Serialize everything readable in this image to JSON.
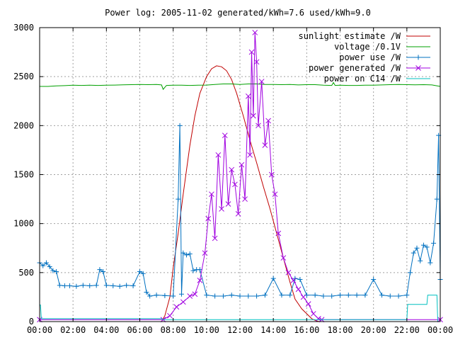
{
  "chart_data": {
    "type": "line",
    "title": "Power log: 2005-11-02 generated/kWh=7.6 used/kWh=9.0",
    "xlabel": "",
    "ylabel": "",
    "xlim": [
      0,
      24
    ],
    "ylim": [
      0,
      3000
    ],
    "x_ticks": [
      "00:00",
      "02:00",
      "04:00",
      "06:00",
      "08:00",
      "10:00",
      "12:00",
      "14:00",
      "16:00",
      "18:00",
      "20:00",
      "22:00",
      "00:00"
    ],
    "y_ticks": [
      "0",
      "500",
      "1000",
      "1500",
      "2000",
      "2500",
      "3000"
    ],
    "grid": true,
    "legend_position": "top-right",
    "series": [
      {
        "name": "sunlight estimate /W",
        "color": "#c00000",
        "marker": "none",
        "x": [
          0,
          7.3,
          7.5,
          7.8,
          8.0,
          8.3,
          8.6,
          9.0,
          9.3,
          9.6,
          10.0,
          10.3,
          10.6,
          10.9,
          11.2,
          11.5,
          11.8,
          12.2,
          12.6,
          13.0,
          13.4,
          13.8,
          14.2,
          14.6,
          15.0,
          15.3,
          15.7,
          16.0,
          16.3,
          16.6,
          16.8,
          24
        ],
        "values": [
          0,
          0,
          60,
          250,
          550,
          900,
          1300,
          1800,
          2100,
          2330,
          2500,
          2580,
          2610,
          2600,
          2560,
          2470,
          2330,
          2100,
          1850,
          1620,
          1380,
          1150,
          900,
          650,
          400,
          230,
          130,
          80,
          30,
          5,
          0,
          0
        ]
      },
      {
        "name": "voltage /0.1V",
        "color": "#00a000",
        "marker": "none",
        "x": [
          0,
          0.5,
          1,
          1.5,
          2,
          2.5,
          3,
          3.5,
          4,
          4.5,
          5,
          5.5,
          6,
          6.5,
          7.0,
          7.3,
          7.4,
          7.6,
          8,
          8.5,
          9,
          9.5,
          10,
          10.5,
          11,
          11.5,
          12,
          12.5,
          13,
          13.5,
          14,
          14.5,
          15,
          15.5,
          16,
          16.5,
          17,
          17.5,
          17.6,
          17.7,
          18,
          18.5,
          19,
          19.5,
          20,
          20.5,
          21,
          21.5,
          22,
          22.5,
          23,
          23.5,
          24
        ],
        "values": [
          2400,
          2400,
          2405,
          2408,
          2412,
          2410,
          2412,
          2410,
          2412,
          2414,
          2416,
          2418,
          2420,
          2418,
          2420,
          2415,
          2370,
          2410,
          2412,
          2412,
          2410,
          2412,
          2414,
          2420,
          2425,
          2425,
          2420,
          2425,
          2425,
          2420,
          2420,
          2418,
          2420,
          2415,
          2418,
          2418,
          2412,
          2410,
          2440,
          2410,
          2412,
          2410,
          2410,
          2412,
          2412,
          2415,
          2418,
          2420,
          2418,
          2416,
          2418,
          2415,
          2400
        ]
      },
      {
        "name": "power use /W",
        "color": "#0070c0",
        "marker": "plus",
        "x": [
          0,
          0.2,
          0.4,
          0.6,
          0.8,
          1.0,
          1.2,
          1.5,
          1.8,
          2.2,
          2.6,
          3.0,
          3.4,
          3.6,
          3.8,
          4.0,
          4.4,
          4.8,
          5.2,
          5.6,
          6.0,
          6.2,
          6.4,
          6.6,
          7.0,
          7.5,
          8.0,
          8.3,
          8.4,
          8.5,
          8.6,
          8.8,
          9.0,
          9.2,
          9.4,
          9.6,
          10.0,
          10.5,
          11.0,
          11.5,
          12.0,
          12.5,
          13.0,
          13.5,
          14.0,
          14.5,
          15.0,
          15.3,
          15.6,
          16.0,
          16.5,
          17.0,
          17.5,
          18.0,
          18.5,
          19.0,
          19.5,
          20.0,
          20.5,
          21.0,
          21.5,
          22.0,
          22.2,
          22.4,
          22.6,
          22.8,
          23.0,
          23.2,
          23.4,
          23.6,
          23.8,
          23.9,
          24.0
        ],
        "values": [
          600,
          570,
          600,
          560,
          520,
          510,
          370,
          365,
          365,
          360,
          370,
          365,
          370,
          530,
          510,
          370,
          365,
          360,
          370,
          365,
          510,
          490,
          300,
          260,
          270,
          265,
          260,
          1250,
          2000,
          280,
          700,
          680,
          690,
          520,
          530,
          530,
          270,
          260,
          260,
          270,
          260,
          260,
          260,
          270,
          440,
          270,
          270,
          440,
          430,
          270,
          270,
          260,
          260,
          270,
          270,
          270,
          270,
          430,
          270,
          260,
          260,
          270,
          500,
          700,
          750,
          620,
          780,
          760,
          600,
          800,
          1250,
          1900,
          430
        ]
      },
      {
        "name": "power generated /W",
        "color": "#a000e0",
        "marker": "cross",
        "x": [
          0,
          7.4,
          7.8,
          8.2,
          8.6,
          9.0,
          9.3,
          9.6,
          9.9,
          10.1,
          10.3,
          10.5,
          10.7,
          10.9,
          11.1,
          11.3,
          11.5,
          11.7,
          11.9,
          12.1,
          12.3,
          12.5,
          12.6,
          12.7,
          12.8,
          12.9,
          13.0,
          13.1,
          13.3,
          13.5,
          13.7,
          13.9,
          14.1,
          14.3,
          14.6,
          14.9,
          15.2,
          15.5,
          15.8,
          16.1,
          16.4,
          16.7,
          16.9,
          24
        ],
        "values": [
          20,
          20,
          60,
          150,
          200,
          260,
          280,
          420,
          700,
          1050,
          1300,
          850,
          1700,
          1150,
          1900,
          1200,
          1550,
          1400,
          1100,
          1600,
          1250,
          2300,
          1700,
          2750,
          2100,
          2950,
          2650,
          2000,
          2450,
          1800,
          2050,
          1500,
          1300,
          900,
          650,
          500,
          420,
          330,
          250,
          180,
          80,
          30,
          20,
          20
        ]
      },
      {
        "name": "power on C14 /W",
        "color": "#00c0c0",
        "marker": "none",
        "x": [
          0,
          0.05,
          0.1,
          7.3,
          7.4,
          22.0,
          22.05,
          23.2,
          23.25,
          23.8,
          23.85,
          24.0
        ],
        "values": [
          170,
          170,
          30,
          30,
          20,
          20,
          175,
          175,
          270,
          270,
          0,
          0
        ]
      }
    ]
  }
}
